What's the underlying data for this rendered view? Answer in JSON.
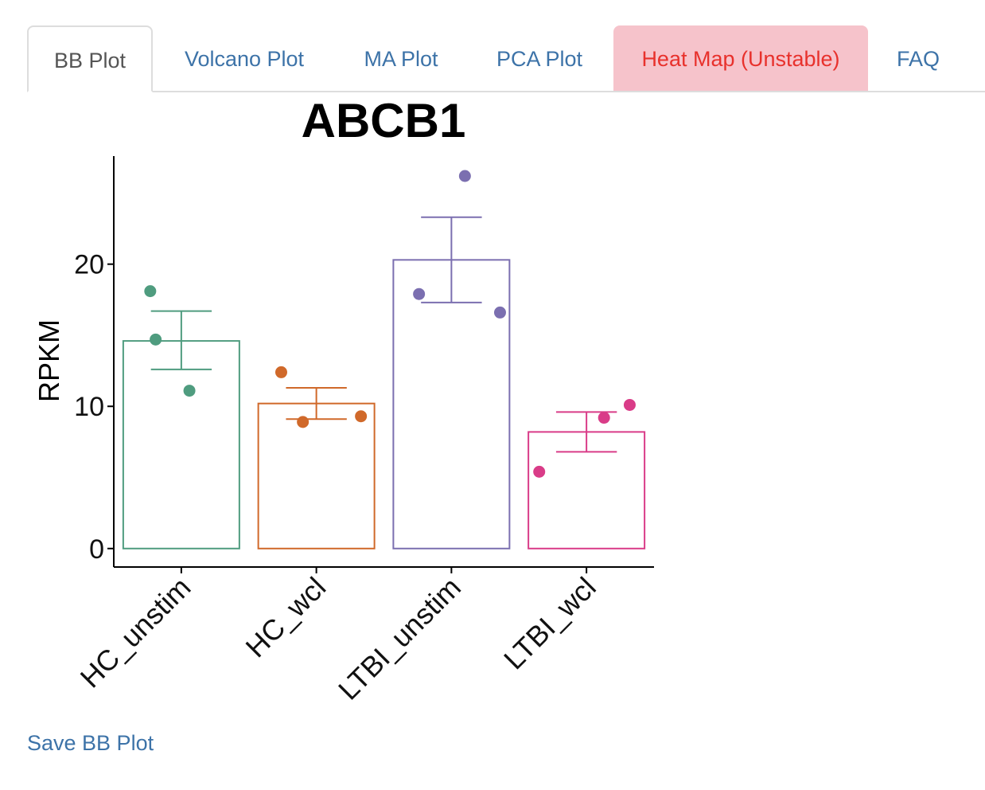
{
  "tabs": [
    {
      "label": "BB Plot",
      "active": true
    },
    {
      "label": "Volcano Plot"
    },
    {
      "label": "MA Plot"
    },
    {
      "label": "PCA Plot"
    },
    {
      "label": "Heat Map (Unstable)",
      "warning": true
    },
    {
      "label": "FAQ"
    }
  ],
  "save_label": "Save BB Plot",
  "chart_data": {
    "type": "bar",
    "title": "ABCB1",
    "xlabel": "",
    "ylabel": "RPKM",
    "ylim": [
      -1.3,
      27.6
    ],
    "yticks": [
      0,
      10,
      20
    ],
    "grid": false,
    "legend": "none",
    "categories": [
      "HC_unstim",
      "HC_wcl",
      "LTBI_unstim",
      "LTBI_wcl"
    ],
    "colors": [
      "#4f9c7f",
      "#d0692a",
      "#7b6fb0",
      "#d93c88"
    ],
    "means": [
      14.6,
      10.2,
      20.3,
      8.2
    ],
    "error_low": [
      12.6,
      9.1,
      17.3,
      6.8
    ],
    "error_high": [
      16.7,
      11.3,
      23.3,
      9.6
    ],
    "points": [
      [
        18.1,
        14.7,
        11.1
      ],
      [
        12.4,
        8.9,
        9.3
      ],
      [
        17.9,
        26.2,
        16.6
      ],
      [
        5.4,
        9.2,
        10.1
      ]
    ]
  }
}
